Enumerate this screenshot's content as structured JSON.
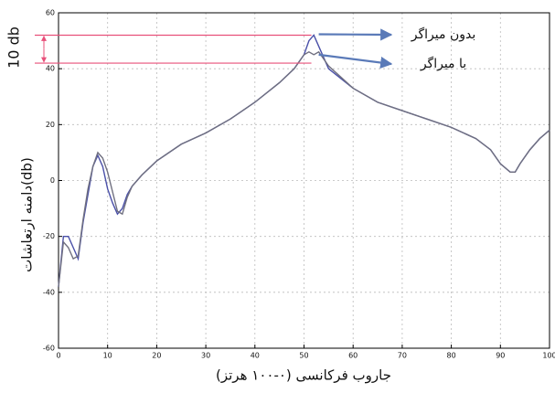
{
  "chart_data": {
    "type": "line",
    "xlabel": "جاروب فرکانسی (۰-۱۰۰ هرتز)",
    "ylabel": "دامنه ارتعاشات(db)",
    "x": [
      0,
      1,
      2,
      3,
      4,
      5,
      6,
      7,
      8,
      9,
      10,
      11,
      12,
      13,
      14,
      15,
      17,
      20,
      25,
      30,
      35,
      40,
      45,
      48,
      50,
      51,
      52,
      53,
      55,
      60,
      65,
      70,
      75,
      80,
      85,
      88,
      90,
      92,
      93,
      94,
      96,
      98,
      100
    ],
    "series": [
      {
        "name": "بدون میراگر",
        "color": "#4a50a8",
        "values": [
          -38,
          -20,
          -20,
          -24,
          -28,
          -15,
          -5,
          5,
          9,
          5,
          -3,
          -8,
          -12,
          -10,
          -5,
          -2,
          2,
          7,
          13,
          17,
          22,
          28,
          35,
          40,
          45,
          50,
          52,
          48,
          40,
          33,
          28,
          25,
          22,
          19,
          15,
          11,
          6,
          3,
          3,
          6,
          11,
          15,
          18
        ]
      },
      {
        "name": "با میراگر",
        "color": "#707080",
        "values": [
          -38,
          -22,
          -24,
          -28,
          -27,
          -14,
          -3,
          5,
          10,
          8,
          3,
          -4,
          -11,
          -12,
          -6,
          -2,
          2,
          7,
          13,
          17,
          22,
          28,
          35,
          40,
          45,
          46,
          45,
          46,
          41,
          33,
          28,
          25,
          22,
          19,
          15,
          11,
          6,
          3,
          3,
          6,
          11,
          15,
          18
        ]
      }
    ],
    "reference_lines": [
      52,
      42
    ],
    "range_label": "10 db",
    "xlim": [
      0,
      100
    ],
    "xticks": [
      0,
      10,
      20,
      30,
      40,
      50,
      60,
      70,
      80,
      90,
      100
    ],
    "ylim": [
      -60,
      60
    ],
    "yticks": [
      -60,
      -40,
      -20,
      0,
      20,
      40,
      60
    ],
    "grid": true
  }
}
